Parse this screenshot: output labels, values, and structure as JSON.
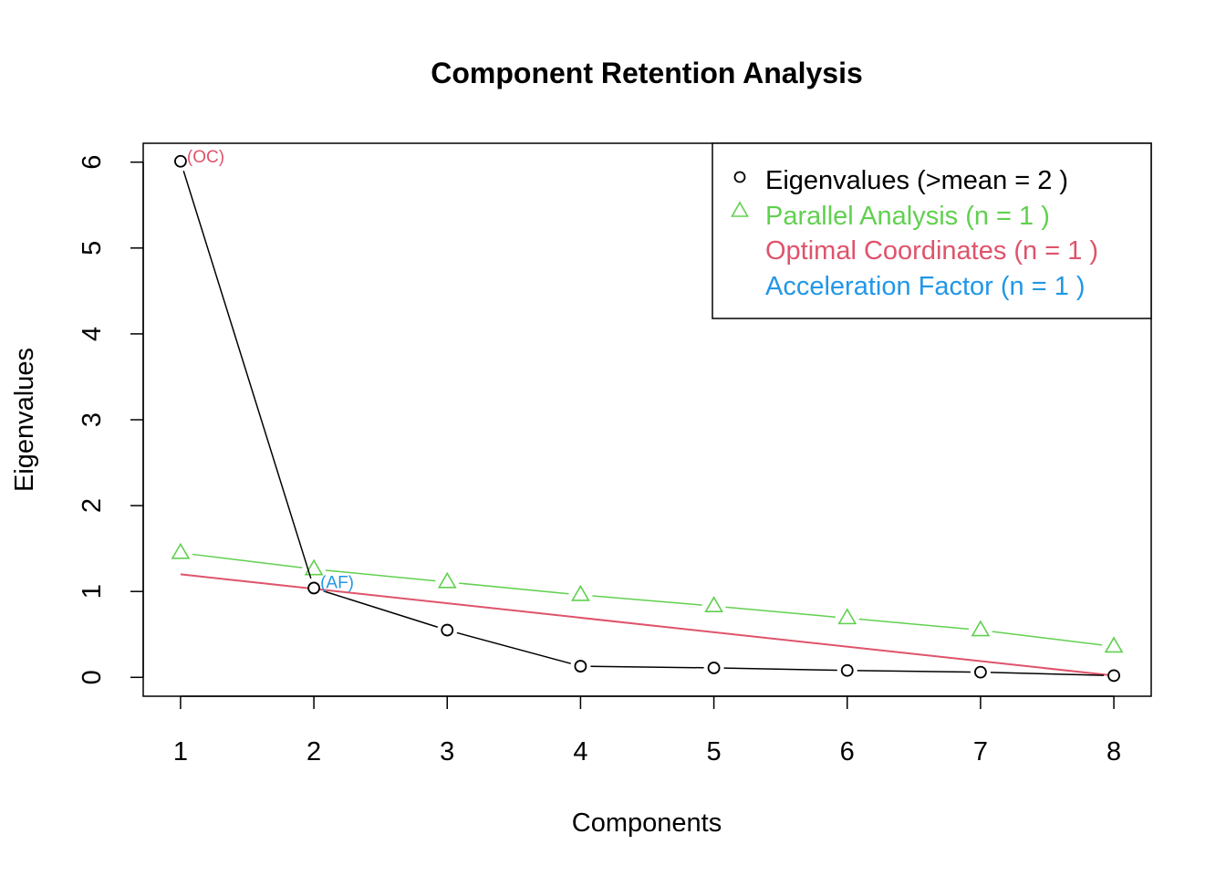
{
  "chart_data": {
    "type": "line",
    "title": "Component Retention Analysis",
    "xlabel": "Components",
    "ylabel": "Eigenvalues",
    "x": [
      1,
      2,
      3,
      4,
      5,
      6,
      7,
      8
    ],
    "xlim": [
      0.72,
      8.28
    ],
    "ylim": [
      -0.22,
      6.22
    ],
    "xticks": [
      "1",
      "2",
      "3",
      "4",
      "5",
      "6",
      "7",
      "8"
    ],
    "yticks": [
      "0",
      "1",
      "2",
      "3",
      "4",
      "5",
      "6"
    ],
    "grid": false,
    "legend_position": "top-right",
    "series": [
      {
        "name": "Eigenvalues",
        "legend_label": "Eigenvalues (>mean  =  2 )",
        "values": [
          6.01,
          1.04,
          0.55,
          0.13,
          0.11,
          0.08,
          0.06,
          0.02
        ],
        "marker": "circle",
        "color": "#000000"
      },
      {
        "name": "Parallel Analysis",
        "legend_label": "Parallel Analysis (n =  1 )",
        "values": [
          1.45,
          1.26,
          1.11,
          0.96,
          0.83,
          0.69,
          0.55,
          0.36
        ],
        "marker": "triangle",
        "color": "#61D04F"
      },
      {
        "name": "Optimal Coordinates",
        "legend_label": "Optimal Coordinates (n =  1 )",
        "line_from": [
          1,
          1.2
        ],
        "line_to": [
          8,
          0.02
        ],
        "marker": "none",
        "color": "#DF536B"
      },
      {
        "name": "Acceleration Factor",
        "legend_label": "Acceleration Factor (n =  1 )",
        "marker": "none",
        "color": "#2297E6"
      }
    ],
    "annotations": [
      {
        "text": "(OC)",
        "x": 1,
        "y": 6.01,
        "color": "#DF536B"
      },
      {
        "text": "(AF)",
        "x": 2,
        "y": 1.04,
        "color": "#2297E6"
      }
    ]
  }
}
